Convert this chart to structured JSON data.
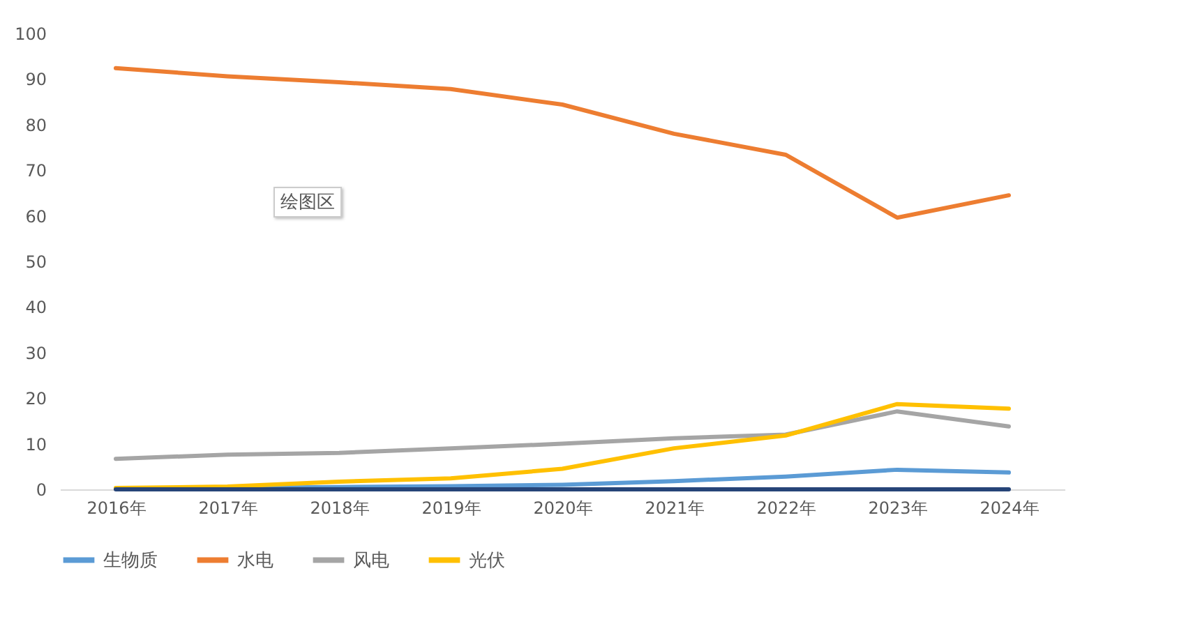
{
  "chart_data": {
    "type": "line",
    "categories": [
      "2016年",
      "2017年",
      "2018年",
      "2019年",
      "2020年",
      "2021年",
      "2022年",
      "2023年",
      "2024年"
    ],
    "series": [
      {
        "name": "生物质",
        "color": "#5b9bd5",
        "values": [
          0.2,
          0.3,
          0.5,
          0.7,
          1.0,
          1.8,
          2.8,
          4.3,
          3.7
        ]
      },
      {
        "name": "水电",
        "color": "#ed7d31",
        "values": [
          92.4,
          90.6,
          89.3,
          87.8,
          84.4,
          78.0,
          73.4,
          59.6,
          64.5
        ]
      },
      {
        "name": "风电",
        "color": "#a5a5a5",
        "values": [
          6.7,
          7.6,
          8.0,
          9.0,
          10.0,
          11.2,
          12.0,
          17.1,
          13.8
        ]
      },
      {
        "name": "光伏",
        "color": "#ffc000",
        "values": [
          0.3,
          0.6,
          1.7,
          2.4,
          4.5,
          9.0,
          11.8,
          18.7,
          17.7
        ]
      },
      {
        "color": "#264478",
        "values": [
          0,
          0,
          0,
          0,
          0,
          0,
          0,
          0,
          0
        ]
      }
    ],
    "ylim": [
      0,
      100
    ],
    "yticks": [
      0,
      10,
      20,
      30,
      40,
      50,
      60,
      70,
      80,
      90,
      100
    ],
    "annotations": [
      "绘图区"
    ],
    "grid": false,
    "legend": "bottom",
    "marker": "none",
    "line_style": "solid"
  }
}
